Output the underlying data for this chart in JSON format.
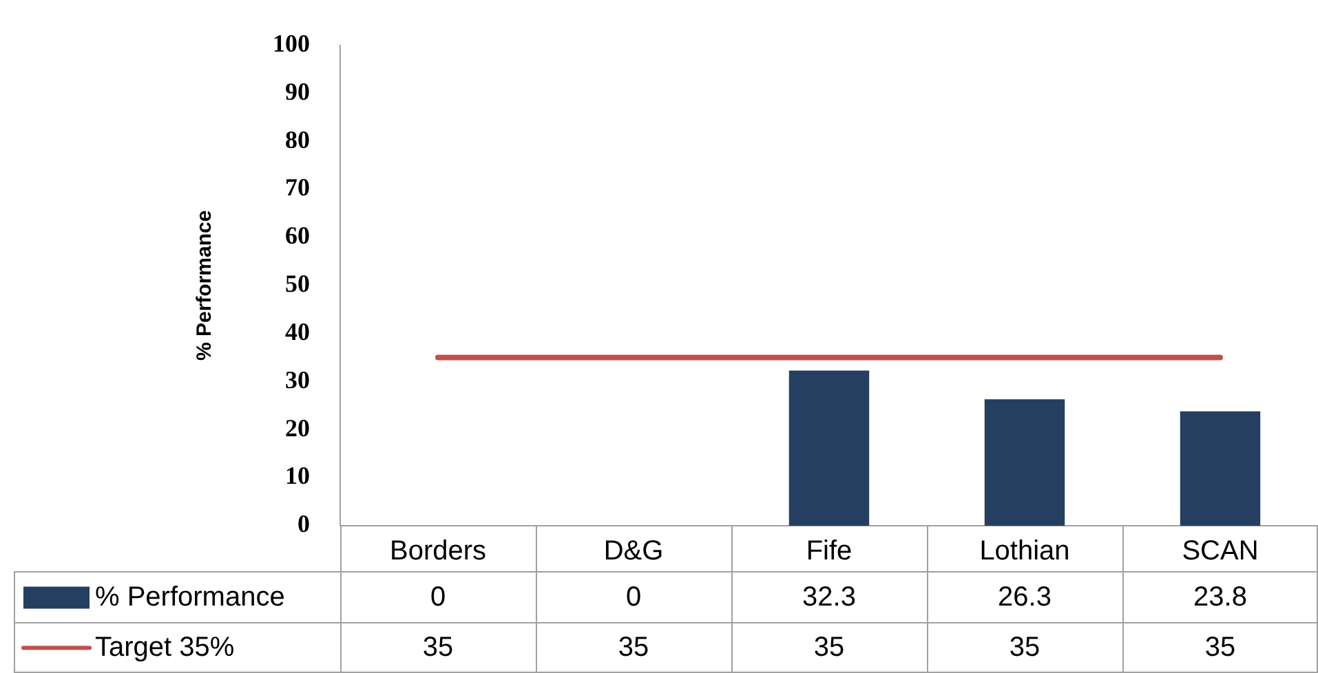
{
  "chart_data": {
    "type": "bar",
    "categories": [
      "Borders",
      "D&G",
      "Fife",
      "Lothian",
      "SCAN"
    ],
    "ylabel": "% Performance",
    "series": [
      {
        "name": "% Performance",
        "color": "#243f60",
        "values": [
          0,
          0,
          32.3,
          26.3,
          23.8
        ]
      },
      {
        "name": "Target 35%",
        "type": "line",
        "color": "#c0504d",
        "values": [
          35,
          35,
          35,
          35,
          35
        ]
      }
    ],
    "ylim": [
      0,
      100
    ],
    "yticks": [
      0,
      10,
      20,
      30,
      40,
      50,
      60,
      70,
      80,
      90,
      100
    ],
    "data_labels": true,
    "legend": "bottom"
  }
}
